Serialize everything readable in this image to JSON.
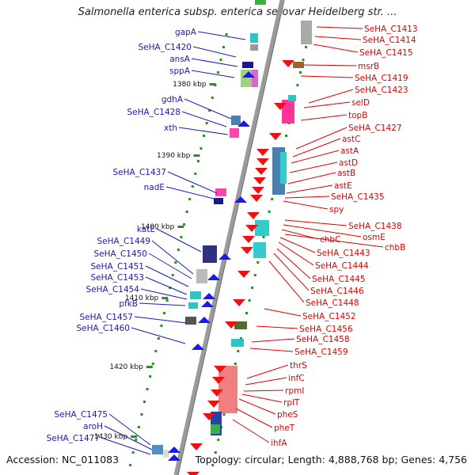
{
  "header": {
    "title": "Salmonella enterica subsp. enterica serovar Heidelberg str. ..."
  },
  "footer": {
    "accession": "Accession: NC_011083",
    "topology": "Topology: circular; Length: 4,888,768 bp; Genes: 4,756"
  },
  "colors": {
    "backbone": "#999999",
    "left_label": "#1a1ab4",
    "right_label": "#e00000",
    "tick_major": "#2e8b2e",
    "tick_minor": "#2e8b2e"
  },
  "scale": {
    "kbp_labels": [
      "1380 kbp",
      "1390 kbp",
      "1400 kbp",
      "1410 kbp",
      "1420 kbp",
      "1430 kbp"
    ]
  },
  "left_genes": [
    {
      "label": "gapA"
    },
    {
      "label": "SeHA_C1420"
    },
    {
      "label": "ansA"
    },
    {
      "label": "sppA"
    },
    {
      "label": "gdhA"
    },
    {
      "label": "SeHA_C1428"
    },
    {
      "label": "xth"
    },
    {
      "label": "SeHA_C1437"
    },
    {
      "label": "nadE"
    },
    {
      "label": "katE"
    },
    {
      "label": "SeHA_C1449"
    },
    {
      "label": "SeHA_C1450"
    },
    {
      "label": "SeHA_C1451"
    },
    {
      "label": "SeHA_C1453"
    },
    {
      "label": "SeHA_C1454"
    },
    {
      "label": "pfkB"
    },
    {
      "label": "SeHA_C1457"
    },
    {
      "label": "SeHA_C1460"
    },
    {
      "label": "SeHA_C1475"
    },
    {
      "label": "aroH"
    },
    {
      "label": "SeHA_C1477"
    }
  ],
  "right_genes": [
    {
      "label": "SeHA_C1413"
    },
    {
      "label": "SeHA_C1414"
    },
    {
      "label": "SeHA_C1415"
    },
    {
      "label": "msrB"
    },
    {
      "label": "SeHA_C1419"
    },
    {
      "label": "SeHA_C1423"
    },
    {
      "label": "selD"
    },
    {
      "label": "topB"
    },
    {
      "label": "SeHA_C1427"
    },
    {
      "label": "astC"
    },
    {
      "label": "astA"
    },
    {
      "label": "astD"
    },
    {
      "label": "astB"
    },
    {
      "label": "astE"
    },
    {
      "label": "SeHA_C1435"
    },
    {
      "label": "spy"
    },
    {
      "label": "SeHA_C1438"
    },
    {
      "label": "osmE"
    },
    {
      "label": "chbC"
    },
    {
      "label": "chbB"
    },
    {
      "label": "SeHA_C1443"
    },
    {
      "label": "SeHA_C1444"
    },
    {
      "label": "SeHA_C1445"
    },
    {
      "label": "SeHA_C1446"
    },
    {
      "label": "SeHA_C1448"
    },
    {
      "label": "SeHA_C1452"
    },
    {
      "label": "SeHA_C1456"
    },
    {
      "label": "SeHA_C1458"
    },
    {
      "label": "SeHA_C1459"
    },
    {
      "label": "thrS"
    },
    {
      "label": "infC"
    },
    {
      "label": "rpmI"
    },
    {
      "label": "rplT"
    },
    {
      "label": "pheS"
    },
    {
      "label": "pheT"
    },
    {
      "label": "ihfA"
    }
  ]
}
